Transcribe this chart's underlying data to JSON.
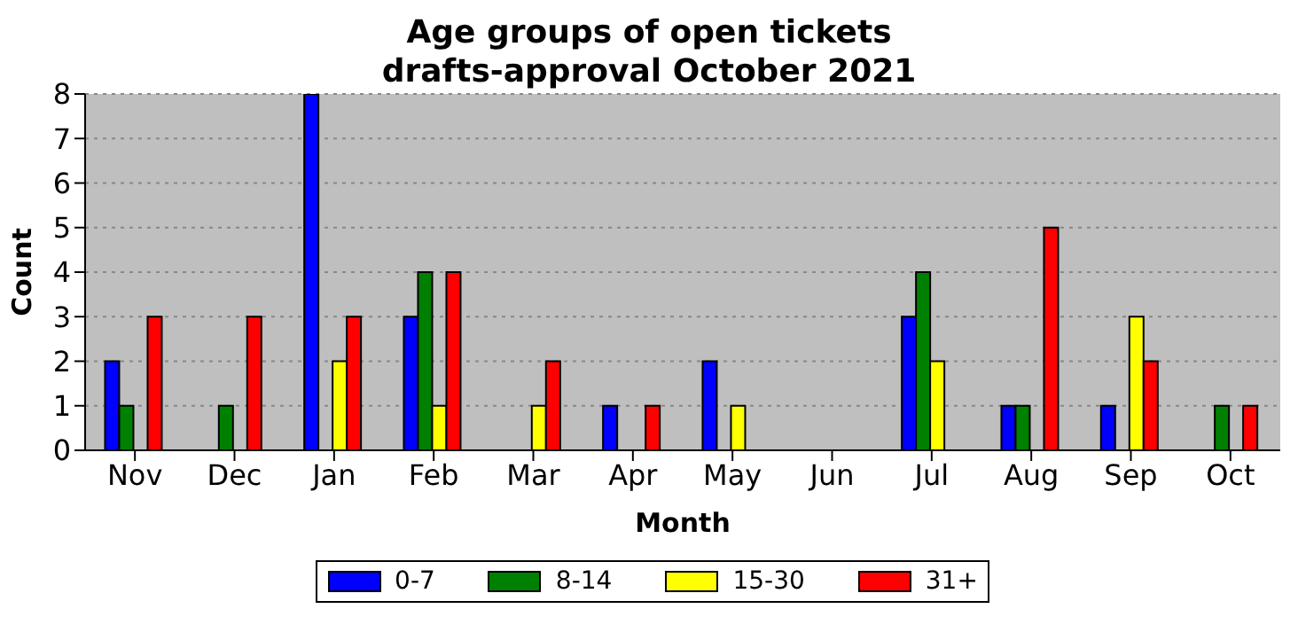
{
  "chart_data": {
    "type": "bar",
    "title": "Age groups of open tickets\ndrafts-approval October 2021",
    "xlabel": "Month",
    "ylabel": "Count",
    "categories": [
      "Nov",
      "Dec",
      "Jan",
      "Feb",
      "Mar",
      "Apr",
      "May",
      "Jun",
      "Jul",
      "Aug",
      "Sep",
      "Oct"
    ],
    "series": [
      {
        "name": "0-7",
        "color": "#0000ff",
        "values": [
          2,
          0,
          8,
          3,
          0,
          1,
          2,
          0,
          3,
          1,
          1,
          0
        ]
      },
      {
        "name": "8-14",
        "color": "#008000",
        "values": [
          1,
          1,
          0,
          4,
          0,
          0,
          0,
          0,
          4,
          1,
          0,
          1
        ]
      },
      {
        "name": "15-30",
        "color": "#ffff00",
        "values": [
          0,
          0,
          2,
          1,
          1,
          0,
          1,
          0,
          2,
          0,
          3,
          0
        ]
      },
      {
        "name": "31+",
        "color": "#ff0000",
        "values": [
          3,
          3,
          3,
          4,
          2,
          1,
          0,
          0,
          0,
          5,
          2,
          1
        ]
      }
    ],
    "ylim": [
      0,
      8
    ],
    "yticks": [
      0,
      1,
      2,
      3,
      4,
      5,
      6,
      7,
      8
    ],
    "grid": "y",
    "legend": "bottom"
  }
}
